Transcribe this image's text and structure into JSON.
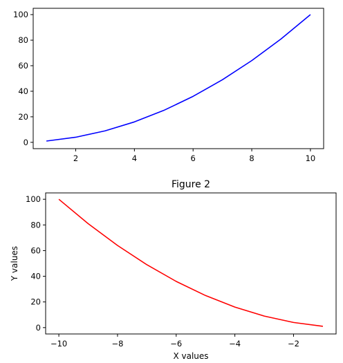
{
  "chart_data": [
    {
      "type": "line",
      "title": "",
      "xlabel": "",
      "ylabel": "",
      "xlim": [
        0.55,
        10.45
      ],
      "ylim": [
        -4.95,
        104.95
      ],
      "xticks": [
        2,
        4,
        6,
        8,
        10
      ],
      "yticks": [
        0,
        20,
        40,
        60,
        80,
        100
      ],
      "xtick_labels": [
        "2",
        "4",
        "6",
        "8",
        "10"
      ],
      "ytick_labels": [
        "0",
        "20",
        "40",
        "60",
        "80",
        "100"
      ],
      "grid": false,
      "series": [
        {
          "color": "#0000ff",
          "x": [
            1,
            2,
            3,
            4,
            5,
            6,
            7,
            8,
            9,
            10
          ],
          "y": [
            1,
            4,
            9,
            16,
            25,
            36,
            49,
            64,
            81,
            100
          ]
        }
      ]
    },
    {
      "type": "line",
      "title": "Figure 2",
      "xlabel": "X values",
      "ylabel": "Y values",
      "xlim": [
        -10.45,
        -0.55
      ],
      "ylim": [
        -4.95,
        104.95
      ],
      "xticks": [
        -10,
        -8,
        -6,
        -4,
        -2
      ],
      "yticks": [
        0,
        20,
        40,
        60,
        80,
        100
      ],
      "xtick_labels": [
        "−10",
        "−8",
        "−6",
        "−4",
        "−2"
      ],
      "ytick_labels": [
        "0",
        "20",
        "40",
        "60",
        "80",
        "100"
      ],
      "grid": false,
      "series": [
        {
          "color": "#ff0000",
          "x": [
            -10,
            -9,
            -8,
            -7,
            -6,
            -5,
            -4,
            -3,
            -2,
            -1
          ],
          "y": [
            100,
            81,
            64,
            49,
            36,
            25,
            16,
            9,
            4,
            1
          ]
        }
      ]
    }
  ]
}
